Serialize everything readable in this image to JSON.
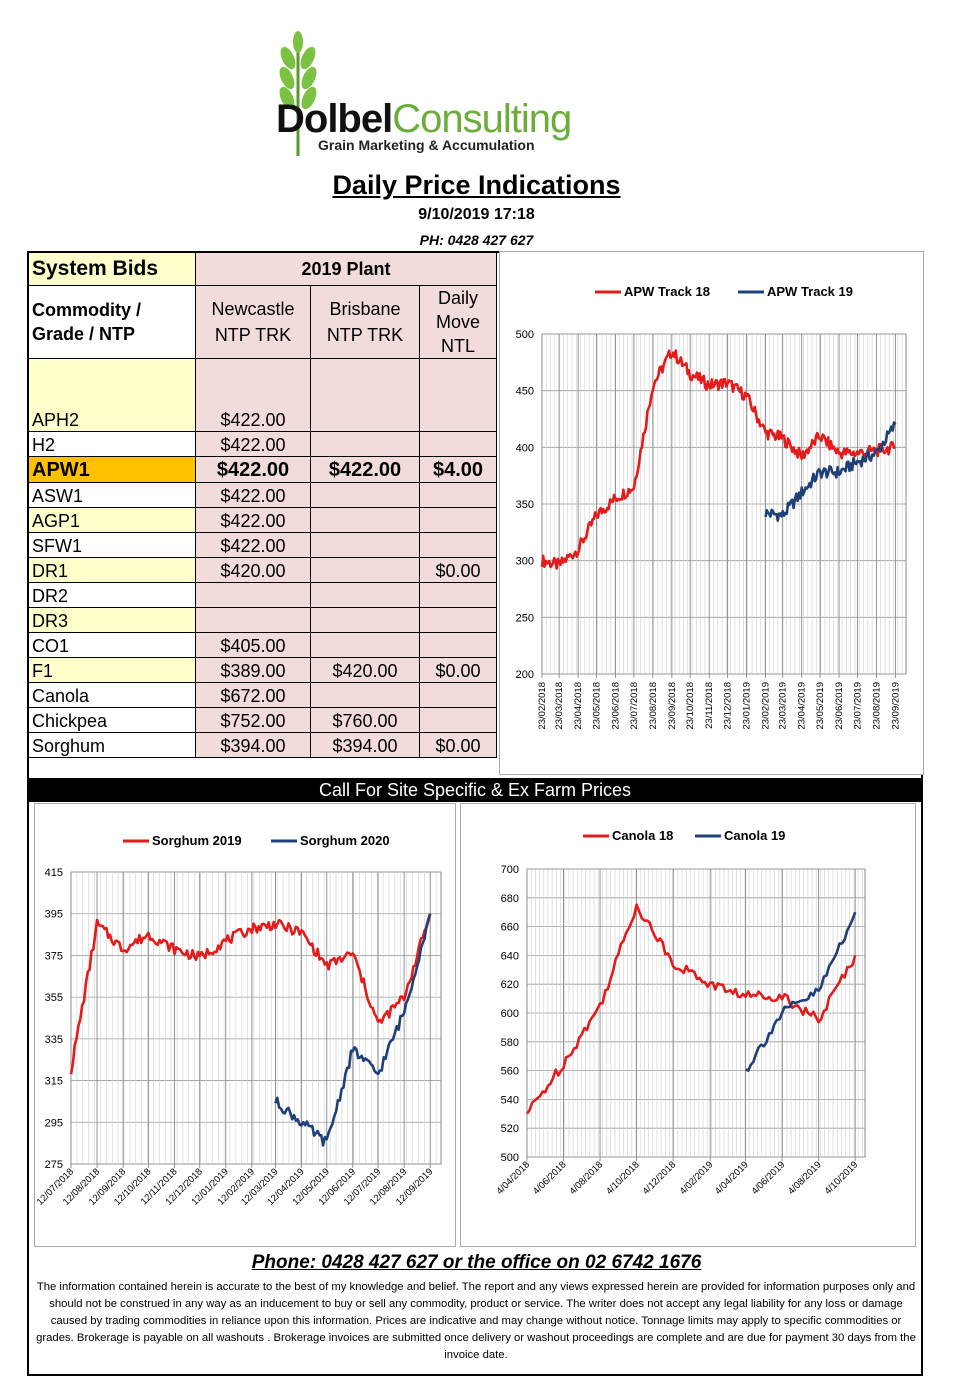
{
  "logo": {
    "name_a": "Dolbel",
    "name_b": "Consulting",
    "tagline": "Grain Marketing & Accumulation"
  },
  "title": "Daily Price Indications",
  "date": "9/10/2019 17:18",
  "phone_line": "PH: 0428 427 627",
  "table": {
    "header1": "System Bids",
    "header2": "2019 Plant",
    "col_grade": "Commodity / Grade / NTP",
    "col_newcastle": "Newcastle NTP TRK",
    "col_brisbane": "Brisbane NTP TRK",
    "col_move": "Daily Move NTL",
    "rows": [
      {
        "grade": "APH2",
        "newcastle": "$422.00",
        "brisbane": "",
        "move": ""
      },
      {
        "grade": "H2",
        "newcastle": "$422.00",
        "brisbane": "",
        "move": ""
      },
      {
        "grade": "APW1",
        "newcastle": "$422.00",
        "brisbane": "$422.00",
        "move": "$4.00"
      },
      {
        "grade": "ASW1",
        "newcastle": "$422.00",
        "brisbane": "",
        "move": ""
      },
      {
        "grade": "AGP1",
        "newcastle": "$422.00",
        "brisbane": "",
        "move": ""
      },
      {
        "grade": "SFW1",
        "newcastle": "$422.00",
        "brisbane": "",
        "move": ""
      },
      {
        "grade": "DR1",
        "newcastle": "$420.00",
        "brisbane": "",
        "move": "$0.00"
      },
      {
        "grade": "DR2",
        "newcastle": "",
        "brisbane": "",
        "move": ""
      },
      {
        "grade": "DR3",
        "newcastle": "",
        "brisbane": "",
        "move": ""
      },
      {
        "grade": "CO1",
        "newcastle": "$405.00",
        "brisbane": "",
        "move": ""
      },
      {
        "grade": "F1",
        "newcastle": "$389.00",
        "brisbane": "$420.00",
        "move": "$0.00"
      },
      {
        "grade": "Canola",
        "newcastle": "$672.00",
        "brisbane": "",
        "move": ""
      },
      {
        "grade": "Chickpea",
        "newcastle": "$752.00",
        "brisbane": "$760.00",
        "move": ""
      },
      {
        "grade": "Sorghum",
        "newcastle": "$394.00",
        "brisbane": "$394.00",
        "move": "$0.00"
      }
    ]
  },
  "call_bar": "Call For Site Specific & Ex Farm Prices",
  "footer_phone": "Phone: 0428 427 627 or the office on 02 6742 1676",
  "disclaimer": "The information contained herein is accurate to the best of my knowledge and belief.  The report and any views expressed herein are provided for information purposes only and should not be construed in any way as an inducement to buy or sell any commodity, product or service. The writer does not accept any legal liability for any loss or damage caused by trading commodities in reliance upon this information. Prices are indicative and may change without notice. Tonnage limits may apply to specific commodities or grades.  Brokerage is payable on all washouts . Brokerage invoices are submitted once delivery or washout proceedings are complete and are due for payment 30 days from the invoice date.",
  "colors": {
    "red": "#e31b1b",
    "blue": "#1f3f78",
    "pink": "#f2dcdb",
    "yellow": "#ffffcc",
    "orange": "#ffc000"
  },
  "chart_data": [
    {
      "type": "line",
      "series": [
        {
          "name": "APW Track 18",
          "color": "#e31b1b",
          "x": [
            "23/02/2018",
            "23/03/2018",
            "23/04/2018",
            "23/05/2018",
            "23/06/2018",
            "23/07/2018",
            "23/08/2018",
            "23/09/2018",
            "23/10/2018",
            "23/11/2018",
            "23/12/2018",
            "23/01/2019",
            "23/02/2019",
            "23/03/2019",
            "23/04/2019",
            "23/05/2019",
            "23/06/2019",
            "23/07/2019",
            "23/08/2019",
            "23/09/2019"
          ],
          "values": [
            300,
            296,
            310,
            340,
            355,
            365,
            455,
            485,
            465,
            455,
            457,
            445,
            413,
            408,
            392,
            410,
            395,
            395,
            397,
            400
          ]
        },
        {
          "name": "APW Track 19",
          "color": "#1f3f78",
          "x": [
            "23/02/2019",
            "23/03/2019",
            "23/04/2019",
            "23/05/2019",
            "23/06/2019",
            "23/07/2019",
            "23/08/2019",
            "23/09/2019"
          ],
          "values": [
            342,
            340,
            360,
            378,
            378,
            387,
            395,
            420
          ]
        }
      ],
      "x_ticks": [
        "23/02/2018",
        "23/03/2018",
        "23/04/2018",
        "23/05/2018",
        "23/06/2018",
        "23/07/2018",
        "23/08/2018",
        "23/09/2018",
        "23/10/2018",
        "23/11/2018",
        "23/12/2018",
        "23/01/2019",
        "23/02/2019",
        "23/03/2019",
        "23/04/2019",
        "23/05/2019",
        "23/06/2019",
        "23/07/2019",
        "23/08/2019",
        "23/09/2019"
      ],
      "y_ticks": [
        "200",
        "250",
        "300",
        "350",
        "400",
        "450",
        "500"
      ],
      "ylim": [
        200,
        500
      ],
      "grid": true,
      "legend": "top"
    },
    {
      "type": "line",
      "series": [
        {
          "name": "Sorghum 2019",
          "color": "#e31b1b",
          "x": [
            "12/07/2018",
            "12/08/2018",
            "12/09/2018",
            "12/10/2018",
            "12/11/2018",
            "12/12/2018",
            "12/01/2019",
            "12/02/2019",
            "12/03/2019",
            "12/04/2019",
            "12/05/2019",
            "12/06/2019",
            "12/07/2019",
            "12/08/2019",
            "12/09/2019"
          ],
          "values": [
            320,
            390,
            378,
            385,
            378,
            374,
            382,
            388,
            390,
            386,
            370,
            376,
            342,
            355,
            395
          ]
        },
        {
          "name": "Sorghum 2020",
          "color": "#1f3f78",
          "x": [
            "12/03/2019",
            "12/04/2019",
            "12/05/2019",
            "12/06/2019",
            "12/07/2019",
            "12/08/2019",
            "12/09/2019"
          ],
          "values": [
            305,
            295,
            285,
            330,
            318,
            348,
            395
          ]
        }
      ],
      "x_ticks": [
        "12/07/2018",
        "12/08/2018",
        "12/09/2018",
        "12/10/2018",
        "12/11/2018",
        "12/12/2018",
        "12/01/2019",
        "12/02/2019",
        "12/03/2019",
        "12/04/2019",
        "12/05/2019",
        "12/06/2019",
        "12/07/2019",
        "12/08/2019",
        "12/09/2019"
      ],
      "y_ticks": [
        "275",
        "295",
        "315",
        "335",
        "355",
        "375",
        "395",
        "415"
      ],
      "ylim": [
        275,
        415
      ],
      "grid": true,
      "legend": "top"
    },
    {
      "type": "line",
      "series": [
        {
          "name": "Canola 18",
          "color": "#e31b1b",
          "x": [
            "4/04/2018",
            "4/06/2018",
            "4/08/2018",
            "4/10/2018",
            "4/12/2018",
            "4/02/2019",
            "4/04/2019",
            "4/06/2019",
            "4/08/2019",
            "4/10/2019"
          ],
          "values": [
            530,
            565,
            605,
            675,
            635,
            620,
            612,
            612,
            595,
            640
          ]
        },
        {
          "name": "Canola 19",
          "color": "#1f3f78",
          "x": [
            "4/04/2019",
            "4/06/2019",
            "4/08/2019",
            "4/10/2019"
          ],
          "values": [
            560,
            600,
            615,
            670
          ]
        }
      ],
      "x_ticks": [
        "4/04/2018",
        "4/06/2018",
        "4/08/2018",
        "4/10/2018",
        "4/12/2018",
        "4/02/2019",
        "4/04/2019",
        "4/06/2019",
        "4/08/2019",
        "4/10/2019"
      ],
      "y_ticks": [
        "500",
        "520",
        "540",
        "560",
        "580",
        "600",
        "620",
        "640",
        "660",
        "680",
        "700"
      ],
      "ylim": [
        500,
        700
      ],
      "grid": true,
      "legend": "top"
    }
  ]
}
